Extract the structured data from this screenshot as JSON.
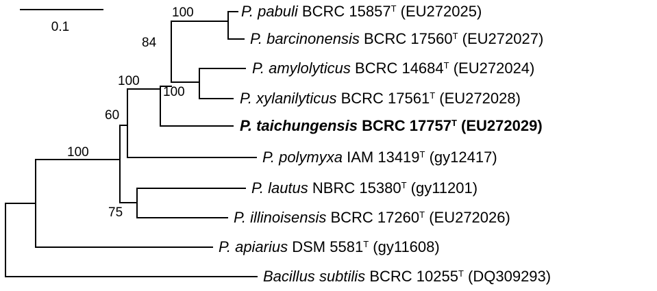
{
  "scale_bar": {
    "label": "0.1"
  },
  "taxa": [
    {
      "genus": "P.",
      "species": "pabuli",
      "strain": "BCRC 15857",
      "type_mark": "T",
      "accession": "(EU272025)",
      "bold": false
    },
    {
      "genus": "P.",
      "species": "barcinonensis",
      "strain": "BCRC 17560",
      "type_mark": "T",
      "accession": "(EU272027)",
      "bold": false
    },
    {
      "genus": "P.",
      "species": "amylolyticus",
      "strain": "BCRC 14684",
      "type_mark": "T",
      "accession": "(EU272024)",
      "bold": false
    },
    {
      "genus": "P.",
      "species": "xylanilyticus",
      "strain": "BCRC 17561",
      "type_mark": "T",
      "accession": "(EU272028)",
      "bold": false
    },
    {
      "genus": "P.",
      "species": "taichungensis",
      "strain": "BCRC 17757",
      "type_mark": "T",
      "accession": "(EU272029)",
      "bold": true
    },
    {
      "genus": "P.",
      "species": "polymyxa",
      "strain": "IAM 13419",
      "type_mark": "T",
      "accession": "(gy12417)",
      "bold": false
    },
    {
      "genus": "P.",
      "species": "lautus",
      "strain": "NBRC 15380",
      "type_mark": "T",
      "accession": "(gy11201)",
      "bold": false
    },
    {
      "genus": "P.",
      "species": "illinoisensis",
      "strain": "BCRC 17260",
      "type_mark": "T",
      "accession": "(EU272026)",
      "bold": false
    },
    {
      "genus": "P.",
      "species": "apiarius",
      "strain": "DSM 5581",
      "type_mark": "T",
      "accession": "(gy11608)",
      "bold": false
    },
    {
      "genus": "Bacillus",
      "species": "subtilis",
      "strain": "BCRC 10255",
      "type_mark": "T",
      "accession": "(DQ309293)",
      "bold": false
    }
  ],
  "bootstrap_values": {
    "pabuli_barcinonensis": "100",
    "pabuli_barcinonensis_amylolyticus_xylanilyticus": "84",
    "amylolyticus_xylanilyticus": "100",
    "with_taichungensis": "100",
    "with_polymyxa": "60",
    "paenibacillus": "100",
    "lautus_illinoisensis": "75"
  }
}
